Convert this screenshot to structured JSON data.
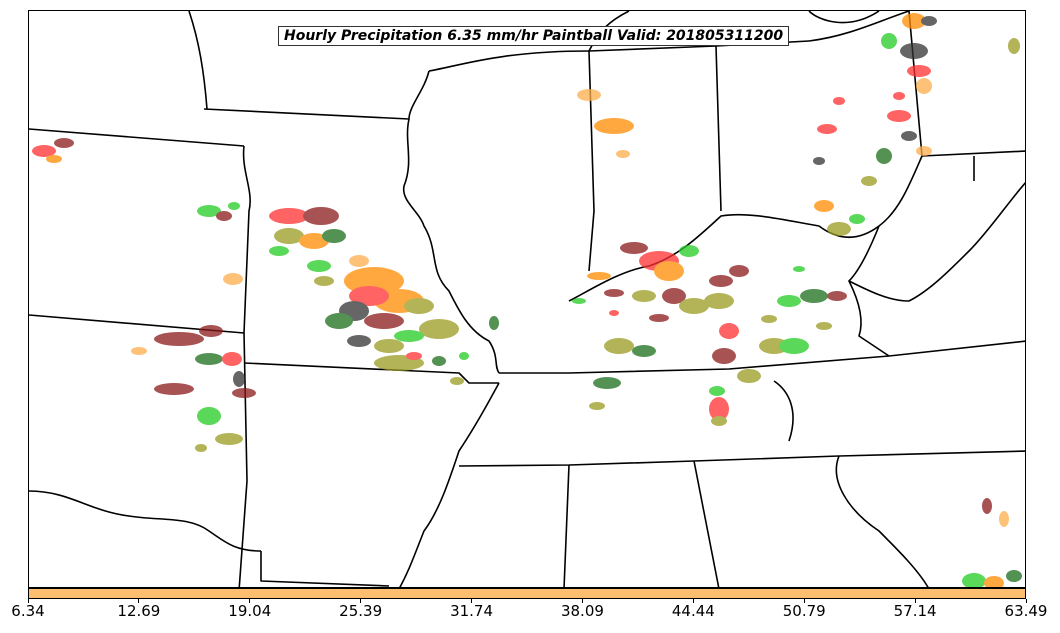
{
  "title": "Hourly Precipitation 6.35 mm/hr Paintball Valid: 201805311200",
  "colorbar": {
    "color": "#fdbf6f",
    "ticks": [
      "6.34",
      "12.69",
      "19.04",
      "25.39",
      "31.74",
      "38.09",
      "44.44",
      "50.79",
      "57.14",
      "63.49"
    ]
  },
  "palette": {
    "orange": "#ff8c00",
    "light_orange": "#fdae4b",
    "red": "#ff3030",
    "dark_red": "#8b1a1a",
    "green": "#22cc22",
    "dark_green": "#1b6e1b",
    "olive": "#9a9a20",
    "black": "#333333"
  },
  "boundaries": "US state outlines, central United States"
}
